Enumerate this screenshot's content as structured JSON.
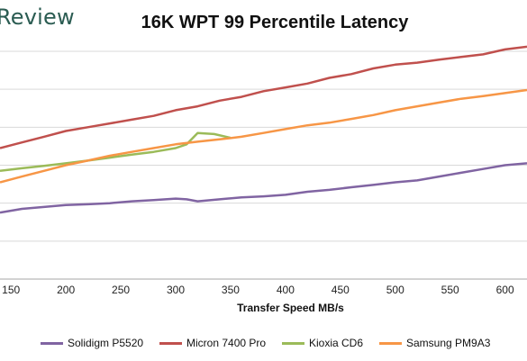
{
  "brand": "Review",
  "chart_data": {
    "type": "line",
    "title": "16K WPT 99 Percentile Latency",
    "xlabel": "Transfer Speed MB/s",
    "ylabel": "",
    "xlim": [
      140,
      620
    ],
    "ylim": [
      0,
      6
    ],
    "x_ticks": [
      150,
      200,
      250,
      300,
      350,
      400,
      450,
      500,
      550,
      600
    ],
    "y_ticks": [
      0,
      1,
      2,
      3,
      4,
      5,
      6
    ],
    "grid": true,
    "legend_position": "bottom",
    "series": [
      {
        "name": "Solidigm P5520",
        "color": "#8064a2",
        "points": [
          [
            140,
            1.75
          ],
          [
            160,
            1.85
          ],
          [
            180,
            1.9
          ],
          [
            200,
            1.95
          ],
          [
            220,
            1.97
          ],
          [
            240,
            2.0
          ],
          [
            260,
            2.05
          ],
          [
            280,
            2.08
          ],
          [
            300,
            2.12
          ],
          [
            310,
            2.1
          ],
          [
            320,
            2.05
          ],
          [
            340,
            2.1
          ],
          [
            360,
            2.15
          ],
          [
            380,
            2.18
          ],
          [
            400,
            2.22
          ],
          [
            420,
            2.3
          ],
          [
            440,
            2.35
          ],
          [
            460,
            2.42
          ],
          [
            480,
            2.48
          ],
          [
            500,
            2.55
          ],
          [
            520,
            2.6
          ],
          [
            540,
            2.7
          ],
          [
            560,
            2.8
          ],
          [
            580,
            2.9
          ],
          [
            600,
            3.0
          ],
          [
            620,
            3.05
          ]
        ]
      },
      {
        "name": "Micron 7400 Pro",
        "color": "#c0504d",
        "points": [
          [
            140,
            3.45
          ],
          [
            160,
            3.6
          ],
          [
            180,
            3.75
          ],
          [
            200,
            3.9
          ],
          [
            220,
            4.0
          ],
          [
            240,
            4.1
          ],
          [
            260,
            4.2
          ],
          [
            280,
            4.3
          ],
          [
            300,
            4.45
          ],
          [
            320,
            4.55
          ],
          [
            340,
            4.7
          ],
          [
            360,
            4.8
          ],
          [
            380,
            4.95
          ],
          [
            400,
            5.05
          ],
          [
            420,
            5.15
          ],
          [
            440,
            5.3
          ],
          [
            460,
            5.4
          ],
          [
            480,
            5.55
          ],
          [
            500,
            5.65
          ],
          [
            520,
            5.7
          ],
          [
            540,
            5.78
          ],
          [
            560,
            5.85
          ],
          [
            580,
            5.92
          ],
          [
            600,
            6.05
          ],
          [
            620,
            6.12
          ]
        ]
      },
      {
        "name": "Kioxia CD6",
        "color": "#9bbb59",
        "points": [
          [
            140,
            2.85
          ],
          [
            160,
            2.92
          ],
          [
            180,
            2.98
          ],
          [
            200,
            3.05
          ],
          [
            220,
            3.12
          ],
          [
            240,
            3.2
          ],
          [
            260,
            3.28
          ],
          [
            280,
            3.35
          ],
          [
            300,
            3.45
          ],
          [
            310,
            3.55
          ],
          [
            320,
            3.85
          ],
          [
            335,
            3.82
          ],
          [
            350,
            3.72
          ]
        ]
      },
      {
        "name": "Samsung PM9A3",
        "color": "#f79646",
        "points": [
          [
            140,
            2.55
          ],
          [
            160,
            2.7
          ],
          [
            180,
            2.85
          ],
          [
            200,
            3.0
          ],
          [
            220,
            3.12
          ],
          [
            240,
            3.25
          ],
          [
            260,
            3.35
          ],
          [
            280,
            3.45
          ],
          [
            300,
            3.55
          ],
          [
            320,
            3.62
          ],
          [
            340,
            3.68
          ],
          [
            360,
            3.75
          ],
          [
            380,
            3.85
          ],
          [
            400,
            3.95
          ],
          [
            420,
            4.05
          ],
          [
            440,
            4.12
          ],
          [
            460,
            4.22
          ],
          [
            480,
            4.32
          ],
          [
            500,
            4.45
          ],
          [
            520,
            4.55
          ],
          [
            540,
            4.65
          ],
          [
            560,
            4.75
          ],
          [
            580,
            4.82
          ],
          [
            600,
            4.9
          ],
          [
            620,
            4.98
          ]
        ]
      }
    ]
  }
}
